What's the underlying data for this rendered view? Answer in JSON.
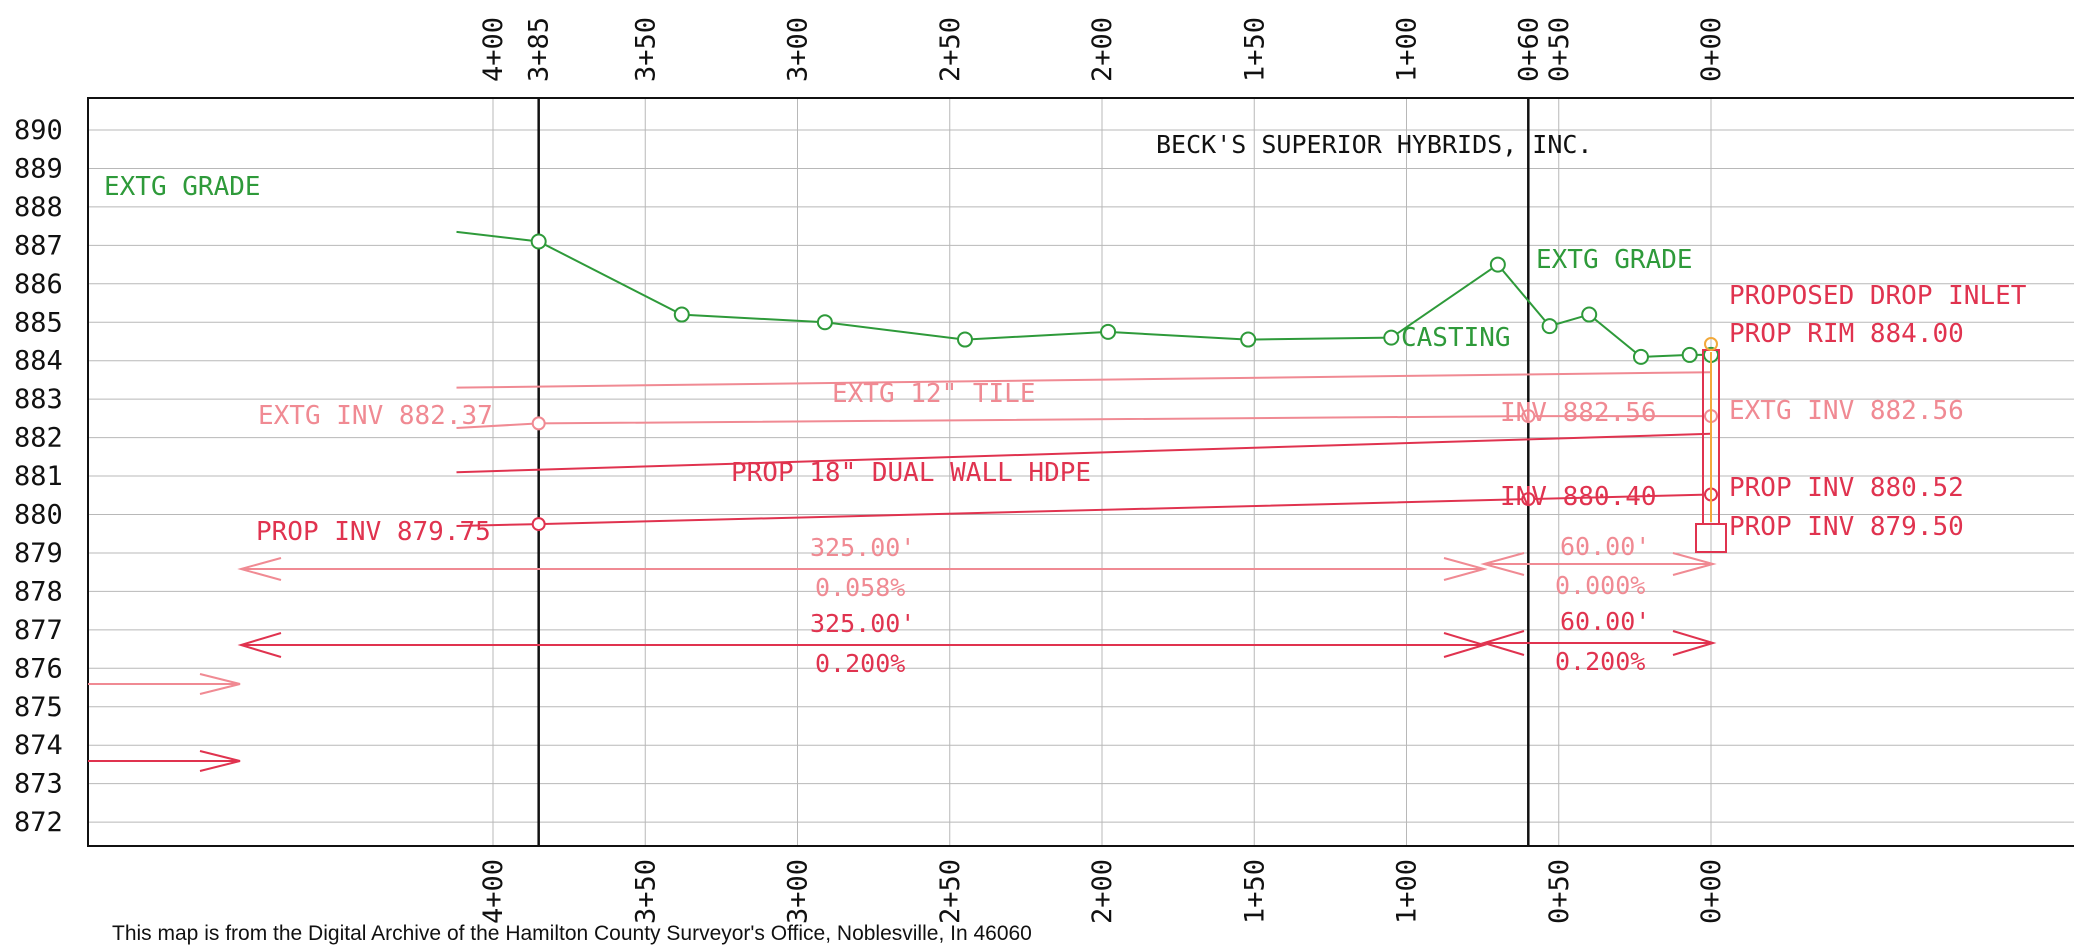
{
  "title": "BECK'S SUPERIOR HYBRIDS, INC.",
  "elevation_labels": [
    "890",
    "889",
    "888",
    "887",
    "886",
    "885",
    "884",
    "883",
    "882",
    "881",
    "880",
    "879",
    "878",
    "877",
    "876",
    "875",
    "874",
    "873",
    "872"
  ],
  "elevation_values": [
    890,
    889,
    888,
    887,
    886,
    885,
    884,
    883,
    882,
    881,
    880,
    879,
    878,
    877,
    876,
    875,
    874,
    873,
    872
  ],
  "station_labels_top": [
    {
      "text": "4+00",
      "sta": 400
    },
    {
      "text": "3+85",
      "sta": 385
    },
    {
      "text": "3+50",
      "sta": 350
    },
    {
      "text": "3+00",
      "sta": 300
    },
    {
      "text": "2+50",
      "sta": 250
    },
    {
      "text": "2+00",
      "sta": 200
    },
    {
      "text": "1+50",
      "sta": 150
    },
    {
      "text": "1+00",
      "sta": 100
    },
    {
      "text": "0+60",
      "sta": 60
    },
    {
      "text": "0+50",
      "sta": 50
    },
    {
      "text": "0+00",
      "sta": 0
    }
  ],
  "station_labels_bottom": [
    {
      "text": "4+00",
      "sta": 400
    },
    {
      "text": "3+50",
      "sta": 350
    },
    {
      "text": "3+00",
      "sta": 300
    },
    {
      "text": "2+50",
      "sta": 250
    },
    {
      "text": "2+00",
      "sta": 200
    },
    {
      "text": "1+50",
      "sta": 150
    },
    {
      "text": "1+00",
      "sta": 100
    },
    {
      "text": "0+50",
      "sta": 50
    },
    {
      "text": "0+00",
      "sta": 0
    }
  ],
  "annotations": {
    "extg_grade_left": "EXTG GRADE",
    "extg_grade_right": "EXTG GRADE",
    "casting": "CASTING",
    "proposed_drop_inlet": "PROPOSED DROP INLET",
    "prop_rim": "PROP RIM 884.00",
    "extg_12_tile": "EXTG 12\" TILE",
    "extg_inv_left": "EXTG INV 882.37",
    "inv_882_56": "INV 882.56",
    "extg_inv_right": "EXTG INV 882.56",
    "prop_18_pipe": "PROP 18\" DUAL WALL HDPE",
    "inv_880_40": "INV 880.40",
    "prop_inv_880_52": "PROP INV 880.52",
    "prop_inv_879_75": "PROP INV 879.75",
    "prop_inv_879_50": "PROP INV 879.50",
    "dim_extg_len_main": "325.00'",
    "dim_extg_slope_main": "0.058%",
    "dim_extg_len_short": "60.00'",
    "dim_extg_slope_short": "0.000%",
    "dim_prop_len_main": "325.00'",
    "dim_prop_slope_main": "0.200%",
    "dim_prop_len_short": "60.00'",
    "dim_prop_slope_short": "0.200%"
  },
  "footer_text": "This map is from the Digital Archive of the Hamilton County Surveyor's Office, Noblesville, In 46060",
  "chart_data": {
    "type": "line",
    "x_axis": "station",
    "y_axis": "elevation",
    "xlim": [
      412,
      -110
    ],
    "ylim": [
      871.5,
      891
    ],
    "series": [
      {
        "points": [
          [
            412,
            887.35
          ],
          [
            385,
            887.1
          ],
          [
            338,
            885.2
          ],
          [
            291,
            885.0
          ],
          [
            245,
            884.55
          ],
          [
            198,
            884.75
          ],
          [
            152,
            884.55
          ],
          [
            105,
            884.6
          ],
          [
            70,
            886.5
          ],
          [
            53,
            884.9
          ],
          [
            40,
            885.2
          ],
          [
            23,
            884.1
          ],
          [
            7,
            884.15
          ],
          [
            0,
            884.15
          ]
        ]
      },
      {
        "points": [
          [
            412,
            883.3
          ],
          [
            0,
            883.7
          ]
        ]
      },
      {
        "points": [
          [
            412,
            882.25
          ],
          [
            385,
            882.37
          ],
          [
            60,
            882.56
          ],
          [
            0,
            882.56
          ]
        ]
      },
      {
        "points": [
          [
            412,
            881.1
          ],
          [
            0,
            882.1
          ]
        ]
      },
      {
        "points": [
          [
            412,
            879.7
          ],
          [
            385,
            879.75
          ],
          [
            60,
            880.4
          ],
          [
            0,
            880.52
          ]
        ]
      }
    ],
    "colors": {
      "existing_grade": "#2e9a3a",
      "proposed": "#e0334f",
      "existing": "#f08a93",
      "grid": "#b8b8b8"
    }
  }
}
